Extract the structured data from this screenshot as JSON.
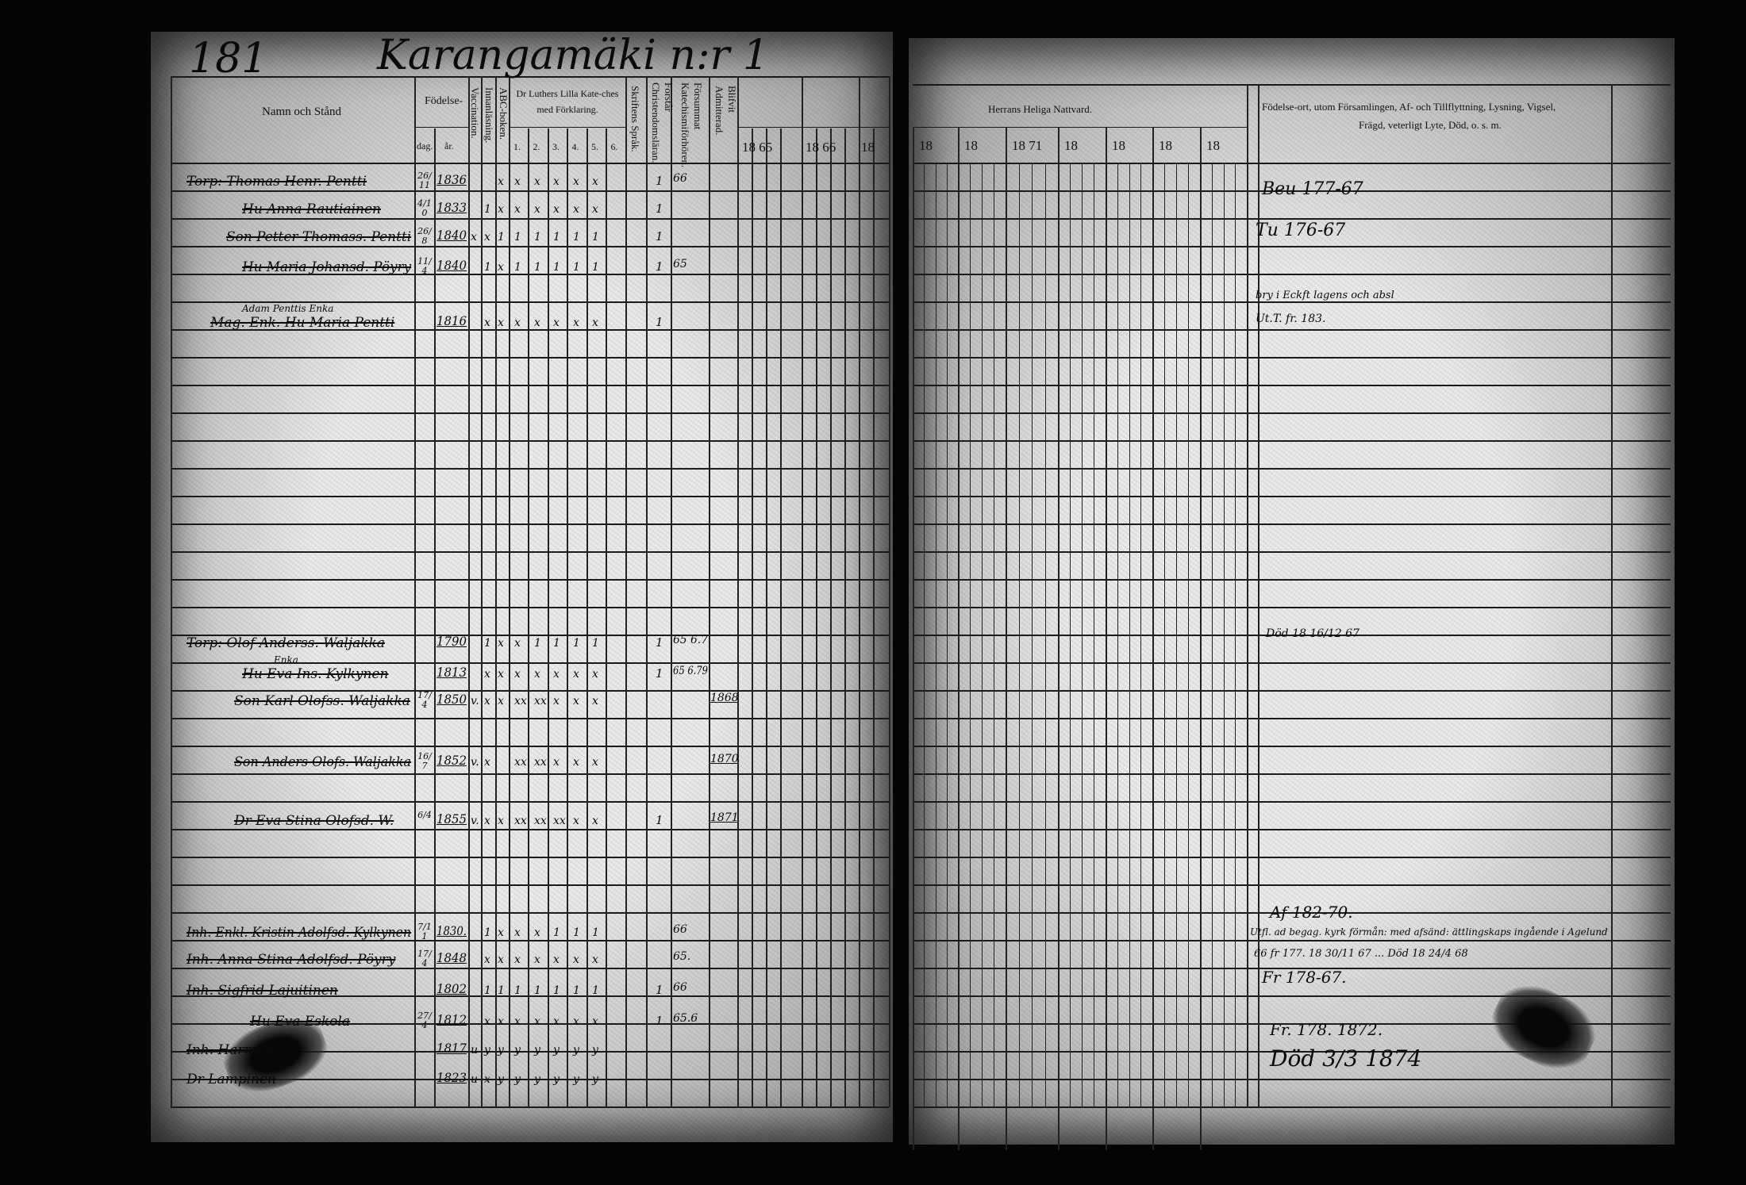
{
  "header": {
    "page_number": "181",
    "farm_title": "Karangamäki n:r 1"
  },
  "left": {
    "columns": {
      "name": "Namn och Stånd",
      "birth": "Födelse-",
      "day": "dag.",
      "year": "år.",
      "vaccination": "Vaccination.",
      "reading": "Innanläsning.",
      "abc": "ABC-boken.",
      "catechism": "Dr Luthers Lilla Kate-ches med Förklaring.",
      "catechism_parts": [
        "1.",
        "2.",
        "3.",
        "4.",
        "5.",
        "6."
      ],
      "scripture": "Skriftens Språk.",
      "understands": "Förstår Christendomsläran.",
      "missed": "Försummat Katechismiförhören.",
      "admitted": "Blifvit Admitterad.",
      "years": [
        "18 65",
        "18 66",
        "18"
      ]
    },
    "entries": [
      {
        "name": "Torp: Thomas Henr. Pentti",
        "day": "26/11",
        "year": "1836",
        "marks": [
          "",
          "",
          "x",
          "x",
          "x",
          "x",
          "x",
          "x"
        ],
        "understands": "1",
        "missed": "66",
        "admitted": ""
      },
      {
        "name": "Hu Anna Rautiainen",
        "day": "4/10",
        "year": "1833",
        "marks": [
          "",
          "1",
          "x",
          "x",
          "x",
          "x",
          "x",
          "x"
        ],
        "understands": "1",
        "missed": "",
        "admitted": ""
      },
      {
        "name": "Son Petter Thomass. Pentti",
        "day": "26/8",
        "year": "1840",
        "marks": [
          "x",
          "x",
          "1",
          "1",
          "1",
          "1",
          "1",
          "1"
        ],
        "understands": "1",
        "missed": "",
        "admitted": ""
      },
      {
        "name": "Hu Maria Johansd. Pöyry",
        "day": "11/4",
        "year": "1840",
        "marks": [
          "",
          "1",
          "x",
          "1",
          "1",
          "1",
          "1",
          "1"
        ],
        "understands": "1",
        "missed": "65",
        "admitted": ""
      },
      {
        "note": "Adam Penttis Enka",
        "name": "Mag. Enk. Hu Maria Pentti",
        "day": "",
        "year": "1816",
        "marks": [
          "",
          "x",
          "x",
          "x",
          "x",
          "x",
          "x",
          "x"
        ],
        "understands": "1",
        "missed": "",
        "admitted": ""
      },
      {
        "name": "Torp: Olof Anderss. Waljakka",
        "day": "",
        "year": "1790",
        "marks": [
          "",
          "1",
          "x",
          "x",
          "1",
          "1",
          "1",
          "1"
        ],
        "understands": "1",
        "missed": "65 6.7",
        "admitted": ""
      },
      {
        "note": "Enka",
        "name": "Hu Eva Ins. Kylkynen",
        "day": "",
        "year": "1813",
        "marks": [
          "",
          "x",
          "x",
          "x",
          "x",
          "x",
          "x",
          "x"
        ],
        "understands": "1",
        "missed": "65 6.79",
        "admitted": ""
      },
      {
        "name": "Son Karl Olofss. Waljakka",
        "day": "17/4",
        "year": "1850",
        "marks": [
          "v.",
          "x",
          "x",
          "xx",
          "xx",
          "x",
          "x",
          "x"
        ],
        "understands": "",
        "missed": "",
        "admitted": "1868"
      },
      {
        "name": "Son Anders Olofs. Waljakka",
        "day": "16/7",
        "year": "1852",
        "marks": [
          "v.",
          "x",
          "",
          "xx",
          "xx",
          "x",
          "x",
          "x"
        ],
        "understands": "",
        "missed": "",
        "admitted": "1870"
      },
      {
        "name": "Dr Eva Stina Olofsd. W.",
        "day": "6/4",
        "year": "1855",
        "marks": [
          "v.",
          "x",
          "x",
          "xx",
          "xx",
          "xx",
          "x",
          "x"
        ],
        "understands": "1",
        "missed": "",
        "admitted": "1871"
      },
      {
        "name": "Inh. Enkl. Kristin Adolfsd. Kylkynen",
        "day": "7/11",
        "year": "1830.",
        "marks": [
          "",
          "1",
          "x",
          "x",
          "x",
          "1",
          "1",
          "1"
        ],
        "understands": "",
        "missed": "66",
        "admitted": ""
      },
      {
        "name": "Inh. Anna Stina Adolfsd. Pöyry",
        "day": "17/4",
        "year": "1848",
        "marks": [
          "",
          "x",
          "x",
          "x",
          "x",
          "x",
          "x",
          "x"
        ],
        "understands": "",
        "missed": "65.",
        "admitted": ""
      },
      {
        "name": "Inh. Sigfrid Lajuitinen",
        "day": "",
        "year": "1802",
        "marks": [
          "",
          "1",
          "1",
          "1",
          "1",
          "1",
          "1",
          "1"
        ],
        "understands": "1",
        "missed": "66",
        "admitted": ""
      },
      {
        "name": "Hu Eva Eskola",
        "day": "27/4",
        "year": "1812",
        "marks": [
          "",
          "x",
          "x",
          "x",
          "x",
          "x",
          "x",
          "x"
        ],
        "understands": "1",
        "missed": "65.6",
        "admitted": ""
      },
      {
        "name": "Inh. Harmen",
        "day": "",
        "year": "1817",
        "marks": [
          "u",
          "y",
          "y",
          "y",
          "y",
          "y",
          "y",
          "y"
        ],
        "understands": "",
        "missed": "",
        "admitted": ""
      },
      {
        "name": "Dr Lampinen",
        "day": "",
        "year": "1823",
        "marks": [
          "u",
          "x",
          "y",
          "y",
          "y",
          "y",
          "y",
          "y"
        ],
        "understands": "",
        "missed": "",
        "admitted": ""
      }
    ]
  },
  "right": {
    "columns": {
      "communion": "Herrans Heliga Nattvard.",
      "years": [
        "18",
        "18",
        "18 71",
        "18",
        "18",
        "18",
        "18"
      ],
      "remarks_line1": "Födelse-ort, utom Församlingen, Af- och Tillflyttning, Lysning, Vigsel,",
      "remarks_line2": "Frägd, veterligt Lyte, Död, o. s. m."
    },
    "remarks": [
      "Beu 177-67",
      "Tu 176-67",
      "bry i Eckft lagens och absl",
      "Ut.T. fr. 183.",
      "Död 18 16/12 67",
      "Af 182-70.",
      "Utfl. ad begag. kyrk förmån: med afsänd: ättlingskaps ingående i Agelund",
      "66 fr 177. 18 30/11 67 ... Död 18 24/4 68",
      "Fr 178-67.",
      "Fr. 178. 1872.",
      "Död 3/3 1874"
    ]
  }
}
